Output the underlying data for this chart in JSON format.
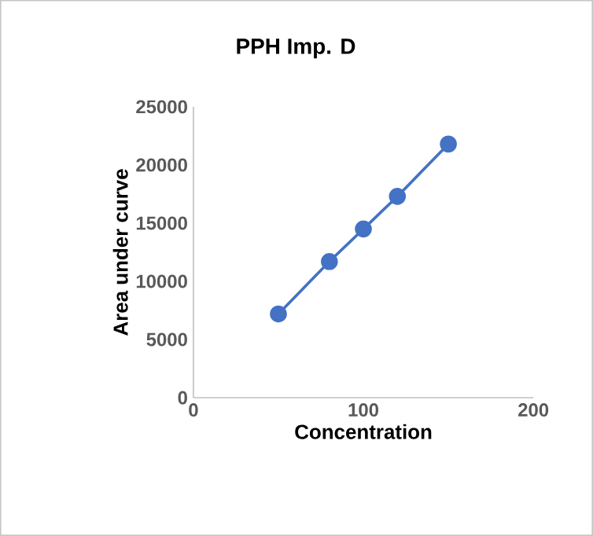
{
  "chart_data": {
    "type": "line",
    "title": "PPH  Imp. D",
    "xlabel": "Concentration",
    "ylabel": "Area under curve",
    "x": [
      50,
      80,
      100,
      120,
      150
    ],
    "values": [
      7200,
      11700,
      14500,
      17300,
      21800
    ],
    "color": "#4472c4",
    "marker": "circle",
    "line_style": "solid",
    "xlim": [
      0,
      200
    ],
    "ylim": [
      0,
      25000
    ],
    "xticks": [
      0,
      100,
      200
    ],
    "yticks": [
      0,
      5000,
      10000,
      15000,
      20000,
      25000
    ]
  }
}
